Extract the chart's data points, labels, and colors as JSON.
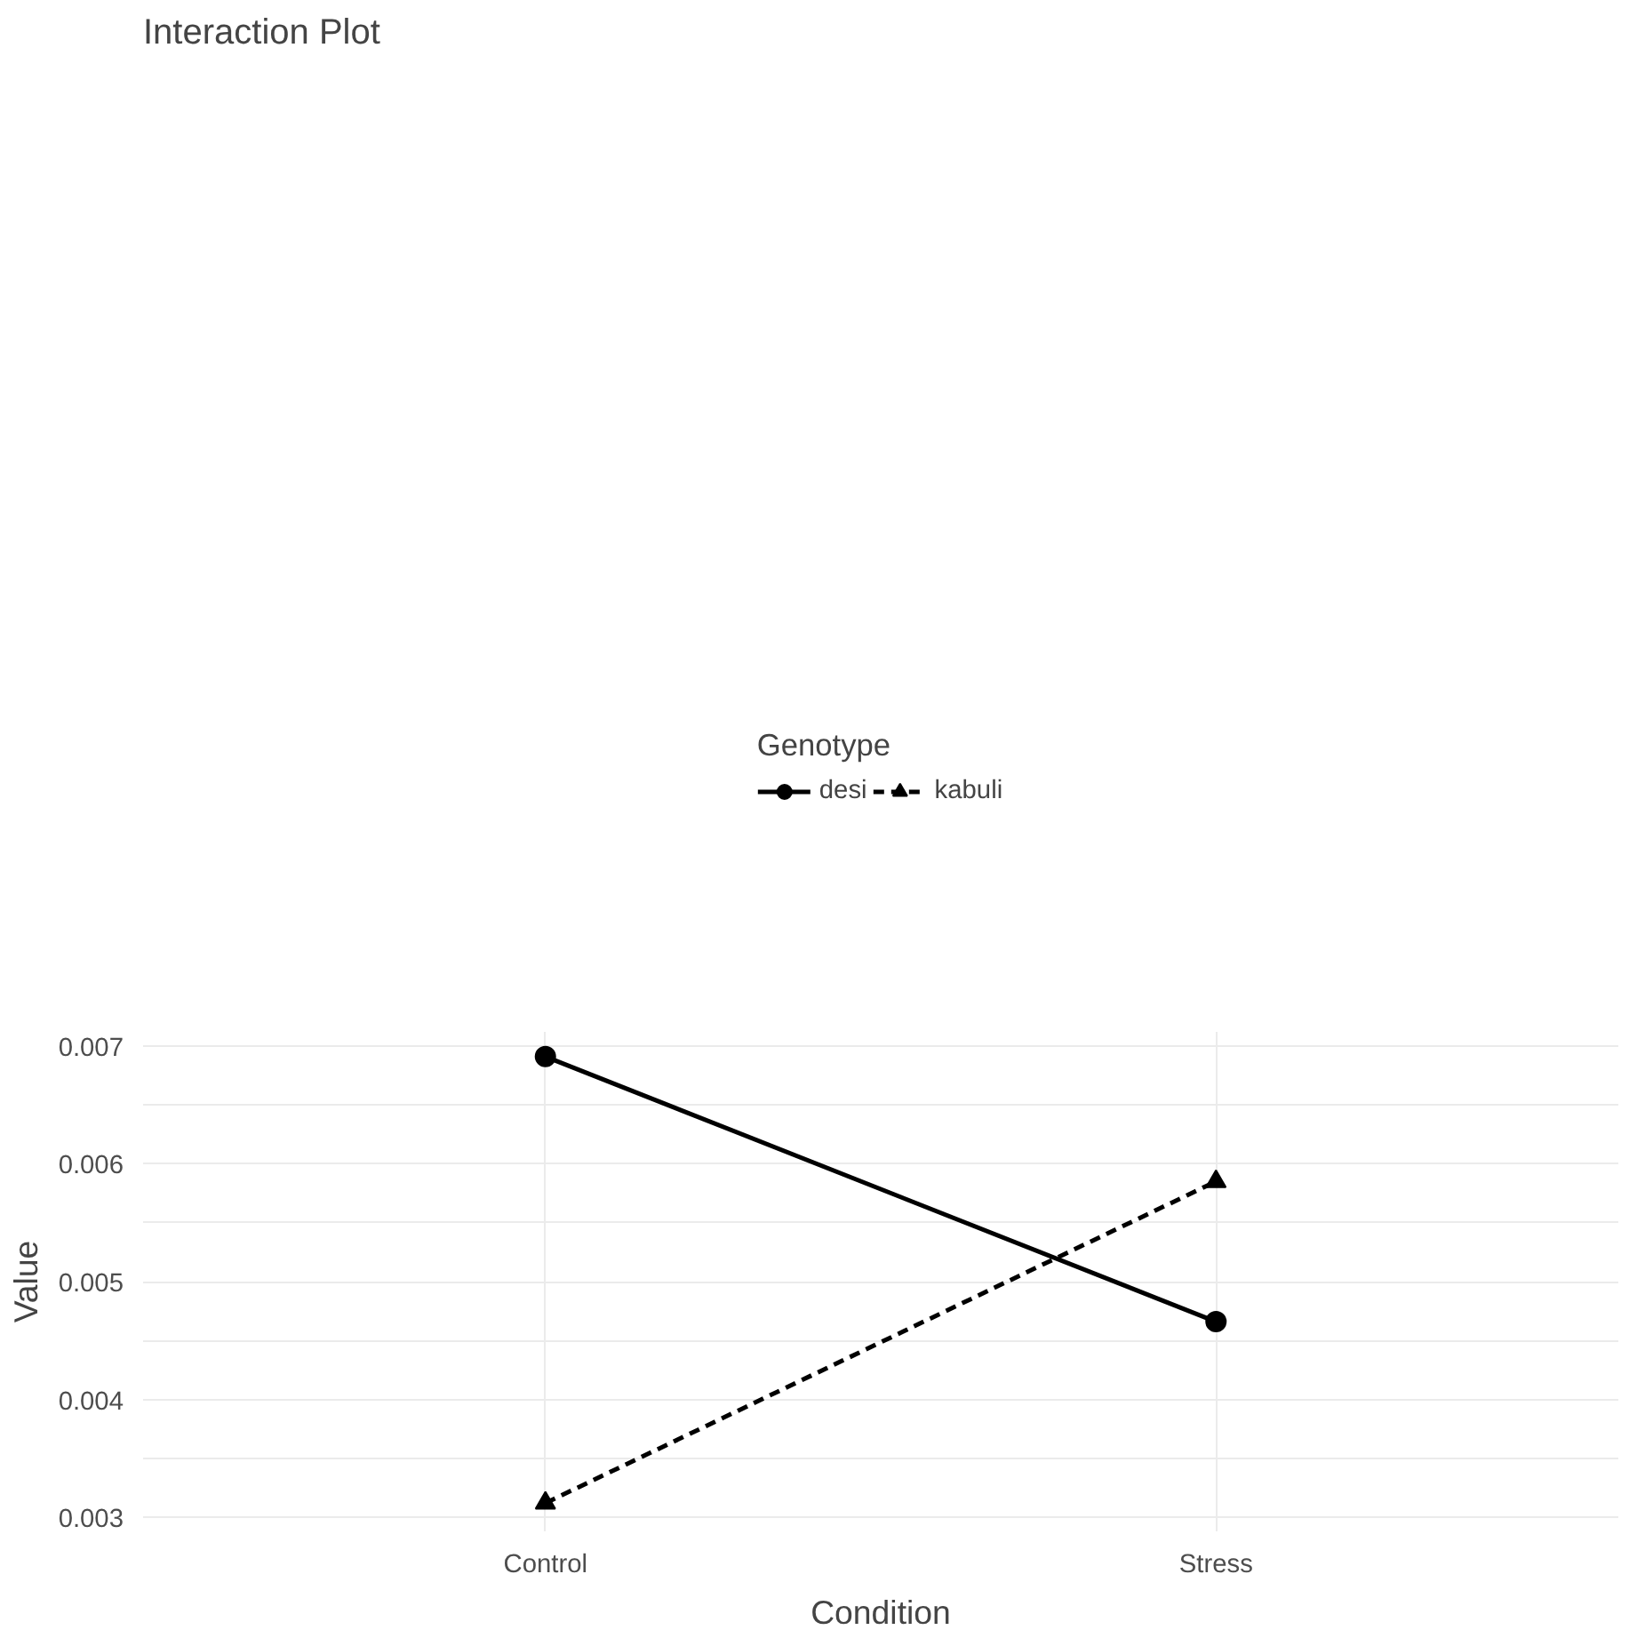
{
  "chart_data": {
    "type": "line",
    "title": "Interaction Plot",
    "xlabel": "Condition",
    "ylabel": "Value",
    "legend_title": "Genotype",
    "categories": [
      "Control",
      "Stress"
    ],
    "series": [
      {
        "name": "desi",
        "color": "#000000",
        "values": [
          0.00691,
          0.00466
        ],
        "marker": "circle",
        "line_style": "solid"
      },
      {
        "name": "kabuli",
        "color": "#000000",
        "values": [
          0.00312,
          0.00585
        ],
        "marker": "triangle",
        "line_style": "dashed"
      }
    ],
    "ylim": [
      0.00288,
      0.00712
    ],
    "yticks": [
      0.003,
      0.004,
      0.005,
      0.006,
      0.007
    ],
    "grid": true,
    "legend": "top"
  }
}
